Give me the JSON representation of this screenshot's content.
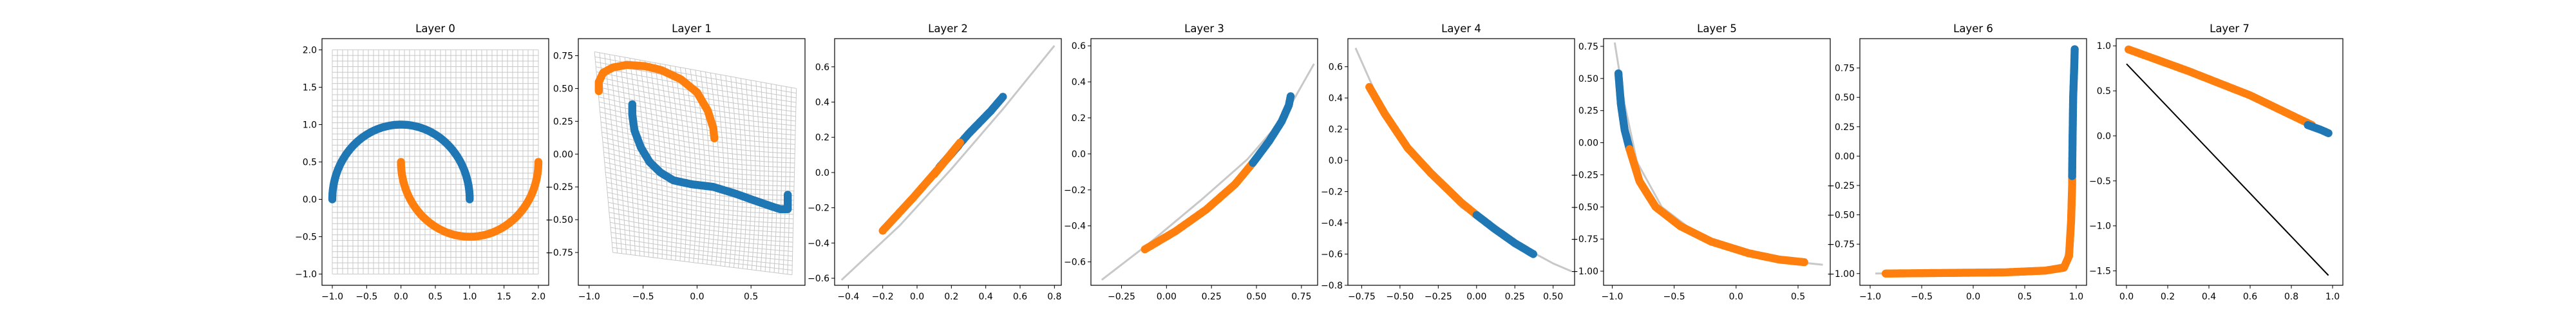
{
  "colors": {
    "class0": "#1f77b4",
    "class1": "#ff7f0e",
    "grid": "#c8c8c8",
    "line": "#000000"
  },
  "chart_data": [
    {
      "type": "scatter",
      "title": "Layer 0",
      "xlim": [
        -1.15,
        2.15
      ],
      "ylim": [
        -1.15,
        2.15
      ],
      "xticks": [
        -1.0,
        -0.5,
        0.0,
        0.5,
        1.0,
        1.5,
        2.0
      ],
      "xtick_labels": [
        "−1.0",
        "−0.5",
        "0.0",
        "0.5",
        "1.0",
        "1.5",
        "2.0"
      ],
      "yticks": [
        -1.0,
        -0.5,
        0.0,
        0.5,
        1.0,
        1.5,
        2.0
      ],
      "ytick_labels": [
        "−1.0",
        "−0.5",
        "0.0",
        "0.5",
        "1.0",
        "1.5",
        "2.0"
      ],
      "grid_mesh": {
        "kind": "grid",
        "x_range": [
          -1.0,
          2.0
        ],
        "y_range": [
          -1.0,
          2.0
        ],
        "n": 40
      },
      "series": [
        {
          "kind": "moon",
          "cx": 0.0,
          "cy": 0.0,
          "r": 1.0,
          "from_deg": 0,
          "to_deg": 180,
          "color": "class0"
        },
        {
          "kind": "moon",
          "cx": 1.0,
          "cy": 0.5,
          "r": 1.0,
          "from_deg": 180,
          "to_deg": 360,
          "color": "class1"
        }
      ]
    },
    {
      "type": "scatter",
      "title": "Layer 1",
      "xlim": [
        -1.1,
        1.0
      ],
      "ylim": [
        -1.0,
        0.88
      ],
      "xticks": [
        -1.0,
        -0.5,
        0.0,
        0.5
      ],
      "xtick_labels": [
        "−1.0",
        "−0.5",
        "0.0",
        "0.5"
      ],
      "yticks": [
        -0.75,
        -0.5,
        -0.25,
        0.0,
        0.25,
        0.5,
        0.75
      ],
      "ytick_labels": [
        "−0.75",
        "−0.50",
        "−0.25",
        "0.00",
        "0.25",
        "0.50",
        "0.75"
      ],
      "grid_mesh": {
        "kind": "warp",
        "corners": [
          [
            -0.95,
            0.78
          ],
          [
            0.92,
            0.5
          ],
          [
            0.88,
            -0.92
          ],
          [
            -0.78,
            -0.75
          ]
        ],
        "n": 40
      },
      "series": [
        {
          "kind": "path",
          "color": "class0",
          "points": [
            [
              -0.6,
              0.38
            ],
            [
              -0.6,
              0.3
            ],
            [
              -0.58,
              0.18
            ],
            [
              -0.52,
              0.05
            ],
            [
              -0.44,
              -0.06
            ],
            [
              -0.34,
              -0.14
            ],
            [
              -0.22,
              -0.2
            ],
            [
              -0.05,
              -0.23
            ],
            [
              0.15,
              -0.25
            ],
            [
              0.35,
              -0.3
            ],
            [
              0.52,
              -0.35
            ],
            [
              0.66,
              -0.39
            ],
            [
              0.77,
              -0.42
            ],
            [
              0.84,
              -0.42
            ],
            [
              0.84,
              -0.31
            ]
          ]
        },
        {
          "kind": "path",
          "color": "class1",
          "points": [
            [
              -0.91,
              0.48
            ],
            [
              -0.91,
              0.55
            ],
            [
              -0.87,
              0.62
            ],
            [
              -0.78,
              0.66
            ],
            [
              -0.65,
              0.68
            ],
            [
              -0.48,
              0.67
            ],
            [
              -0.33,
              0.64
            ],
            [
              -0.15,
              0.57
            ],
            [
              0.0,
              0.47
            ],
            [
              0.1,
              0.33
            ],
            [
              0.15,
              0.2
            ],
            [
              0.16,
              0.12
            ]
          ]
        }
      ]
    },
    {
      "type": "scatter",
      "title": "Layer 2",
      "xlim": [
        -0.48,
        0.84
      ],
      "ylim": [
        -0.64,
        0.76
      ],
      "xticks": [
        -0.4,
        -0.2,
        0.0,
        0.2,
        0.4,
        0.6,
        0.8
      ],
      "xtick_labels": [
        "−0.4",
        "−0.2",
        "0.0",
        "0.2",
        "0.4",
        "0.6",
        "0.8"
      ],
      "yticks": [
        -0.6,
        -0.4,
        -0.2,
        0.0,
        0.2,
        0.4,
        0.6
      ],
      "ytick_labels": [
        "−0.6",
        "−0.4",
        "−0.2",
        "0.0",
        "0.2",
        "0.4",
        "0.6"
      ],
      "grid_mesh": {
        "kind": "band",
        "points": [
          [
            -0.44,
            -0.61
          ],
          [
            -0.1,
            -0.3
          ],
          [
            0.2,
            0.02
          ],
          [
            0.5,
            0.36
          ],
          [
            0.8,
            0.72
          ]
        ]
      },
      "series": [
        {
          "kind": "path",
          "color": "class1",
          "points": [
            [
              -0.2,
              -0.33
            ],
            [
              -0.02,
              -0.14
            ],
            [
              0.15,
              0.05
            ],
            [
              0.24,
              0.15
            ]
          ]
        },
        {
          "kind": "path",
          "color": "class0",
          "points": [
            [
              0.13,
              0.03
            ],
            [
              0.3,
              0.22
            ],
            [
              0.43,
              0.35
            ],
            [
              0.5,
              0.43
            ]
          ]
        },
        {
          "kind": "path",
          "color": "class1",
          "points": [
            [
              0.1,
              -0.01
            ],
            [
              0.2,
              0.11
            ],
            [
              0.25,
              0.17
            ]
          ]
        }
      ]
    },
    {
      "type": "scatter",
      "title": "Layer 3",
      "xlim": [
        -0.42,
        0.84
      ],
      "ylim": [
        -0.73,
        0.64
      ],
      "xticks": [
        -0.25,
        0.0,
        0.25,
        0.5,
        0.75
      ],
      "xtick_labels": [
        "−0.25",
        "0.00",
        "0.25",
        "0.50",
        "0.75"
      ],
      "yticks": [
        -0.6,
        -0.4,
        -0.2,
        0.0,
        0.2,
        0.4,
        0.6
      ],
      "ytick_labels": [
        "−0.6",
        "−0.4",
        "−0.2",
        "0.0",
        "0.2",
        "0.4",
        "0.6"
      ],
      "grid_mesh": {
        "kind": "band",
        "points": [
          [
            -0.36,
            -0.7
          ],
          [
            -0.1,
            -0.5
          ],
          [
            0.2,
            -0.25
          ],
          [
            0.45,
            -0.03
          ],
          [
            0.65,
            0.2
          ],
          [
            0.82,
            0.5
          ]
        ]
      },
      "series": [
        {
          "kind": "path",
          "color": "class1",
          "points": [
            [
              -0.12,
              -0.53
            ],
            [
              0.05,
              -0.43
            ],
            [
              0.22,
              -0.31
            ],
            [
              0.38,
              -0.17
            ],
            [
              0.48,
              -0.05
            ]
          ]
        },
        {
          "kind": "path",
          "color": "class0",
          "points": [
            [
              0.48,
              -0.05
            ],
            [
              0.57,
              0.07
            ],
            [
              0.64,
              0.18
            ],
            [
              0.68,
              0.27
            ],
            [
              0.69,
              0.32
            ]
          ]
        }
      ]
    },
    {
      "type": "scatter",
      "title": "Layer 4",
      "xlim": [
        -0.84,
        0.64
      ],
      "ylim": [
        -0.8,
        0.78
      ],
      "xticks": [
        -0.75,
        -0.5,
        -0.25,
        0.0,
        0.25,
        0.5
      ],
      "xtick_labels": [
        "−0.75",
        "−0.50",
        "−0.25",
        "0.00",
        "0.25",
        "0.50"
      ],
      "yticks": [
        -0.8,
        -0.6,
        -0.4,
        -0.2,
        0.0,
        0.2,
        0.4,
        0.6
      ],
      "ytick_labels": [
        "−0.8",
        "−0.6",
        "−0.4",
        "−0.2",
        "0.0",
        "0.2",
        "0.4",
        "0.6"
      ],
      "grid_mesh": {
        "kind": "band",
        "points": [
          [
            -0.79,
            0.72
          ],
          [
            -0.6,
            0.3
          ],
          [
            -0.4,
            0.0
          ],
          [
            -0.1,
            -0.3
          ],
          [
            0.2,
            -0.5
          ],
          [
            0.5,
            -0.66
          ],
          [
            0.62,
            -0.71
          ]
        ]
      },
      "series": [
        {
          "kind": "path",
          "color": "class1",
          "points": [
            [
              -0.7,
              0.47
            ],
            [
              -0.6,
              0.3
            ],
            [
              -0.45,
              0.08
            ],
            [
              -0.3,
              -0.08
            ],
            [
              -0.1,
              -0.27
            ],
            [
              0.0,
              -0.35
            ]
          ]
        },
        {
          "kind": "path",
          "color": "class0",
          "points": [
            [
              0.0,
              -0.35
            ],
            [
              0.12,
              -0.44
            ],
            [
              0.25,
              -0.53
            ],
            [
              0.37,
              -0.6
            ]
          ]
        }
      ]
    },
    {
      "type": "scatter",
      "title": "Layer 5",
      "xlim": [
        -1.07,
        0.76
      ],
      "ylim": [
        -1.11,
        0.81
      ],
      "xticks": [
        -1.0,
        -0.5,
        0.0,
        0.5
      ],
      "xtick_labels": [
        "−1.0",
        "−0.5",
        "0.0",
        "0.5"
      ],
      "yticks": [
        -1.0,
        -0.75,
        -0.5,
        -0.25,
        0.0,
        0.25,
        0.5,
        0.75
      ],
      "ytick_labels": [
        "−1.00",
        "−0.75",
        "−0.50",
        "−0.25",
        "0.00",
        "0.25",
        "0.50",
        "0.75"
      ],
      "grid_mesh": {
        "kind": "band",
        "points": [
          [
            -0.98,
            0.78
          ],
          [
            -0.9,
            0.3
          ],
          [
            -0.8,
            -0.15
          ],
          [
            -0.6,
            -0.5
          ],
          [
            -0.3,
            -0.72
          ],
          [
            0.1,
            -0.85
          ],
          [
            0.5,
            -0.93
          ],
          [
            0.7,
            -0.95
          ]
        ]
      },
      "series": [
        {
          "kind": "path",
          "color": "class0",
          "points": [
            [
              -0.95,
              0.54
            ],
            [
              -0.93,
              0.3
            ],
            [
              -0.9,
              0.1
            ],
            [
              -0.86,
              -0.05
            ]
          ]
        },
        {
          "kind": "path",
          "color": "class1",
          "points": [
            [
              -0.86,
              -0.05
            ],
            [
              -0.78,
              -0.3
            ],
            [
              -0.65,
              -0.5
            ],
            [
              -0.45,
              -0.65
            ],
            [
              -0.2,
              -0.77
            ],
            [
              0.1,
              -0.86
            ],
            [
              0.35,
              -0.91
            ],
            [
              0.55,
              -0.93
            ]
          ]
        }
      ]
    },
    {
      "type": "scatter",
      "title": "Layer 6",
      "xlim": [
        -1.1,
        1.1
      ],
      "ylim": [
        -1.1,
        1.0
      ],
      "xticks": [
        -1.0,
        -0.5,
        0.0,
        0.5,
        1.0
      ],
      "xtick_labels": [
        "−1.0",
        "−0.5",
        "0.0",
        "0.5",
        "1.0"
      ],
      "yticks": [
        -1.0,
        -0.75,
        -0.5,
        -0.25,
        0.0,
        0.25,
        0.5,
        0.75
      ],
      "ytick_labels": [
        "−1.00",
        "−0.75",
        "−0.50",
        "−0.25",
        "0.00",
        "0.25",
        "0.50",
        "0.75"
      ],
      "grid_mesh": {
        "kind": "band",
        "points": [
          [
            -0.95,
            -1.0
          ],
          [
            0.0,
            -0.99
          ],
          [
            0.6,
            -0.97
          ],
          [
            0.88,
            -0.92
          ],
          [
            0.95,
            -0.6
          ],
          [
            0.97,
            0.0
          ],
          [
            0.98,
            0.9
          ]
        ]
      },
      "series": [
        {
          "kind": "path",
          "color": "class1",
          "points": [
            [
              -0.85,
              -1.0
            ],
            [
              -0.3,
              -0.995
            ],
            [
              0.3,
              -0.99
            ],
            [
              0.7,
              -0.975
            ],
            [
              0.88,
              -0.95
            ],
            [
              0.93,
              -0.85
            ],
            [
              0.95,
              -0.55
            ],
            [
              0.96,
              -0.25
            ],
            [
              0.96,
              -0.17
            ]
          ]
        },
        {
          "kind": "path",
          "color": "class0",
          "points": [
            [
              0.96,
              -0.17
            ],
            [
              0.965,
              0.2
            ],
            [
              0.97,
              0.5
            ],
            [
              0.98,
              0.75
            ],
            [
              0.985,
              0.91
            ]
          ]
        }
      ]
    },
    {
      "type": "line",
      "title": "Layer 7",
      "xlim": [
        -0.05,
        1.05
      ],
      "ylim": [
        -1.66,
        1.08
      ],
      "xticks": [
        0.0,
        0.2,
        0.4,
        0.6,
        0.8,
        1.0
      ],
      "xtick_labels": [
        "0.0",
        "0.2",
        "0.4",
        "0.6",
        "0.8",
        "1.0"
      ],
      "yticks": [
        -1.5,
        -1.0,
        -0.5,
        0.0,
        0.5,
        1.0
      ],
      "ytick_labels": [
        "−1.5",
        "−1.0",
        "−0.5",
        "0.0",
        "0.5",
        "1.0"
      ],
      "decision_line": [
        [
          0.0,
          0.8
        ],
        [
          0.98,
          -1.55
        ]
      ],
      "series": [
        {
          "kind": "path",
          "color": "class1",
          "points": [
            [
              0.01,
              0.96
            ],
            [
              0.3,
              0.72
            ],
            [
              0.6,
              0.45
            ],
            [
              0.9,
              0.12
            ]
          ]
        },
        {
          "kind": "path",
          "color": "class0",
          "points": [
            [
              0.88,
              0.12
            ],
            [
              0.94,
              0.07
            ],
            [
              0.98,
              0.03
            ]
          ]
        }
      ]
    }
  ]
}
